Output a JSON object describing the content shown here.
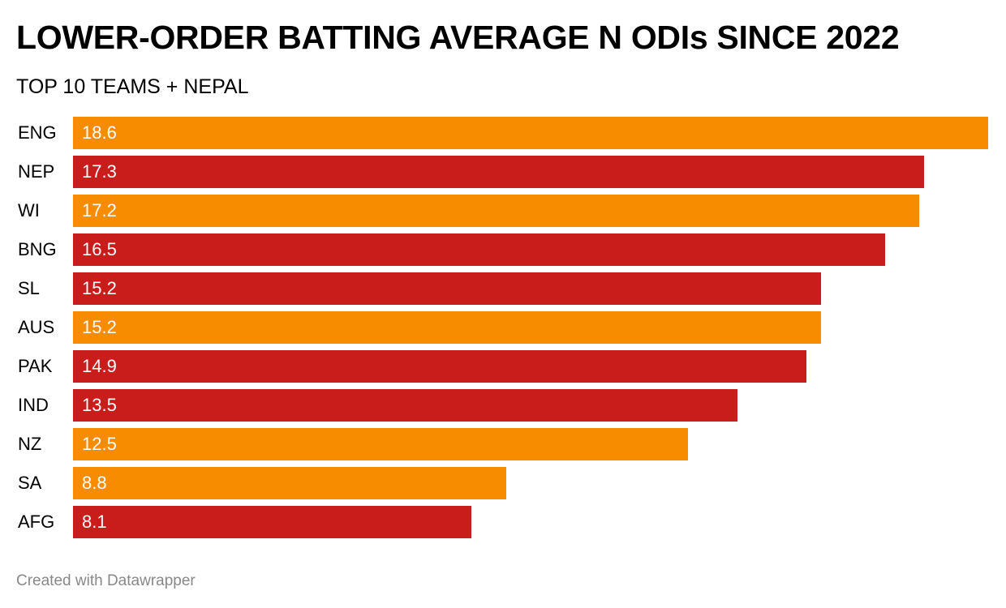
{
  "chart_data": {
    "type": "bar",
    "orientation": "horizontal",
    "title": "LOWER-ORDER BATTING AVERAGE N ODIs SINCE 2022",
    "subtitle": "TOP 10 TEAMS + NEPAL",
    "xlabel": "",
    "ylabel": "",
    "xlim": [
      0,
      18.6
    ],
    "grid": false,
    "categories": [
      "ENG",
      "NEP",
      "WI",
      "BNG",
      "SL",
      "AUS",
      "PAK",
      "IND",
      "NZ",
      "SA",
      "AFG"
    ],
    "values": [
      18.6,
      17.3,
      17.2,
      16.5,
      15.2,
      15.2,
      14.9,
      13.5,
      12.5,
      8.8,
      8.1
    ],
    "value_labels": [
      "18.6",
      "17.3",
      "17.2",
      "16.5",
      "15.2",
      "15.2",
      "14.9",
      "13.5",
      "12.5",
      "8.8",
      "8.1"
    ],
    "bar_colors": [
      "#f88c00",
      "#c91d1b",
      "#f88c00",
      "#c91d1b",
      "#c91d1b",
      "#f88c00",
      "#c91d1b",
      "#c91d1b",
      "#f88c00",
      "#f88c00",
      "#c91d1b"
    ]
  },
  "footer": {
    "credit": "Created with Datawrapper"
  },
  "colors": {
    "orange": "#f88c00",
    "red": "#c91d1b",
    "credit_text": "#888888"
  }
}
